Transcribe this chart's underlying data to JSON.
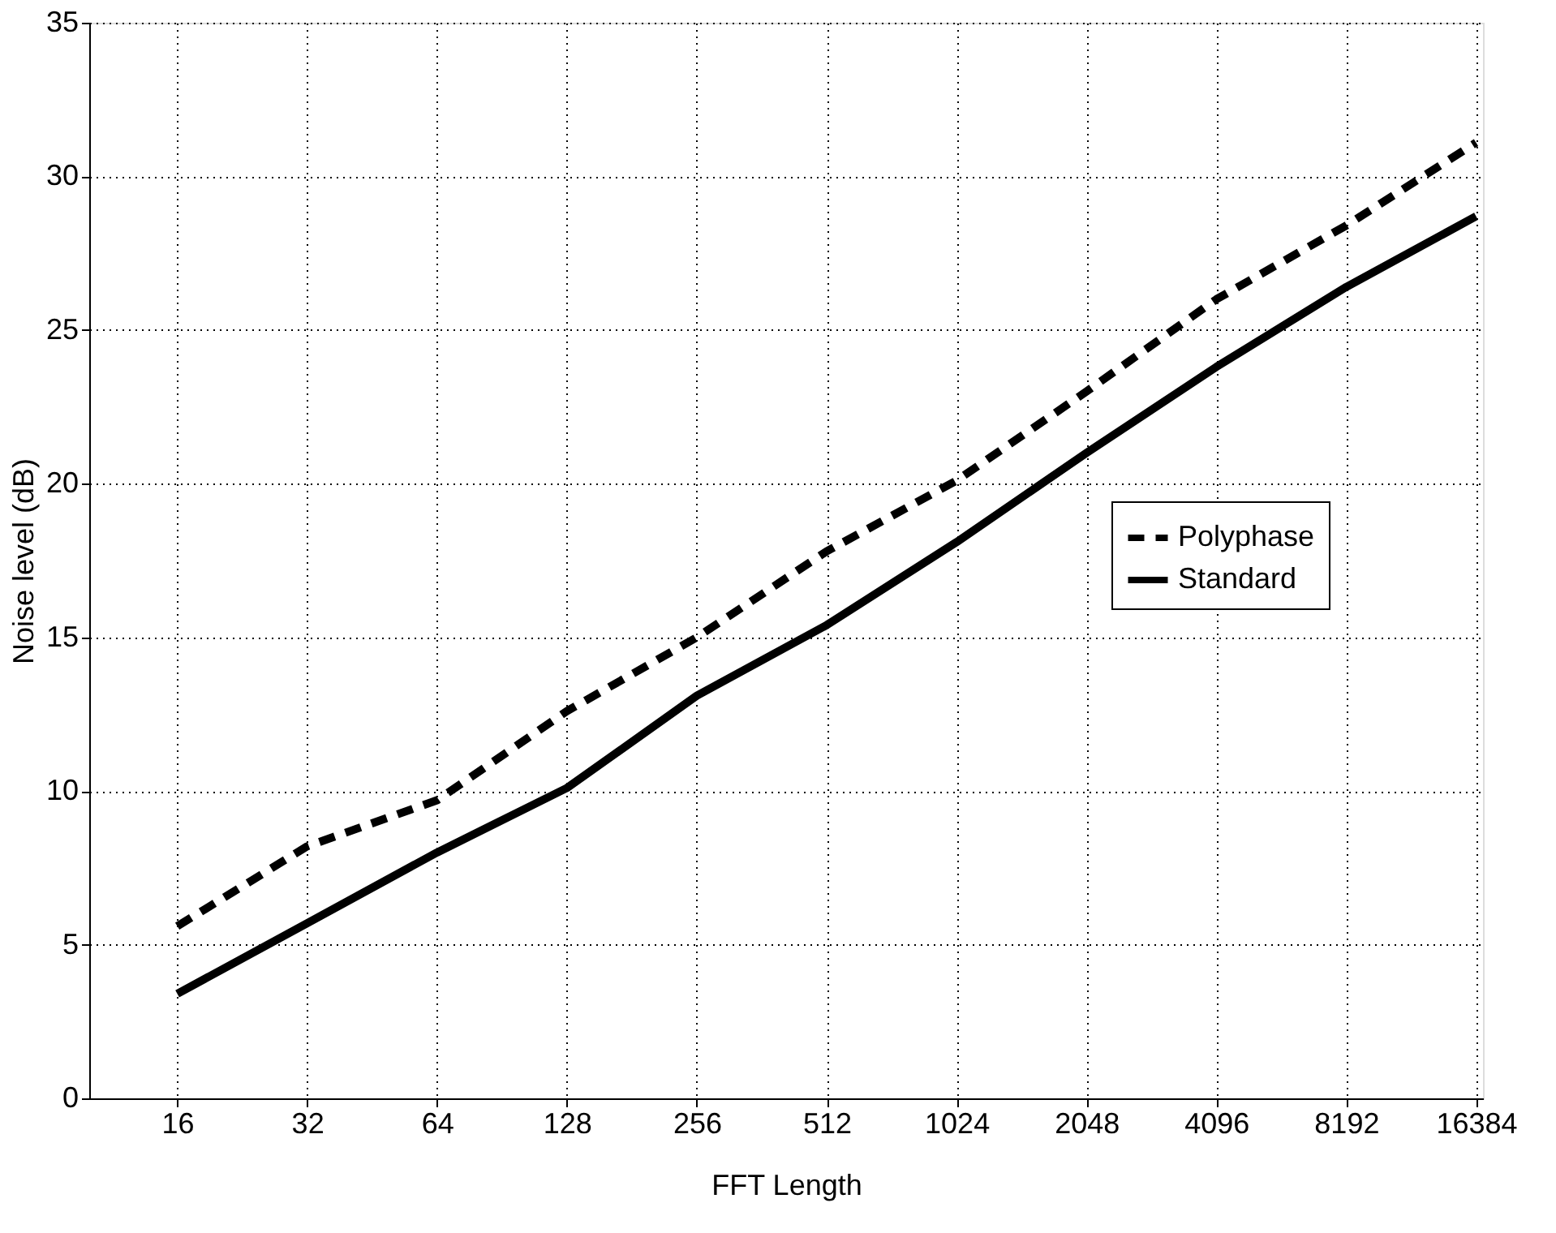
{
  "chart_data": {
    "type": "line",
    "xlabel": "FFT Length",
    "ylabel": "Noise level (dB)",
    "x": [
      16,
      32,
      64,
      128,
      256,
      512,
      1024,
      2048,
      4096,
      8192,
      16384
    ],
    "series": [
      {
        "name": "Polyphase",
        "color": "#000000",
        "line_style": "dashed",
        "values": [
          5.6,
          8.2,
          9.7,
          12.6,
          15.0,
          17.8,
          20.1,
          23.0,
          26.0,
          28.4,
          31.1
        ]
      },
      {
        "name": "Standard",
        "color": "#000000",
        "line_style": "solid",
        "values": [
          3.4,
          5.7,
          8.0,
          10.1,
          13.1,
          15.4,
          18.1,
          21.0,
          23.8,
          26.4,
          28.7
        ]
      }
    ],
    "log": "x",
    "xlim": [
      10,
      17000
    ],
    "xticks": [
      16,
      32,
      64,
      128,
      256,
      512,
      1024,
      2048,
      4096,
      8192,
      16384
    ],
    "ylim": [
      0,
      35
    ],
    "yticks": [
      0,
      5,
      10,
      15,
      20,
      25,
      30,
      35
    ],
    "grid": true,
    "legend": "right",
    "marker": "none"
  }
}
